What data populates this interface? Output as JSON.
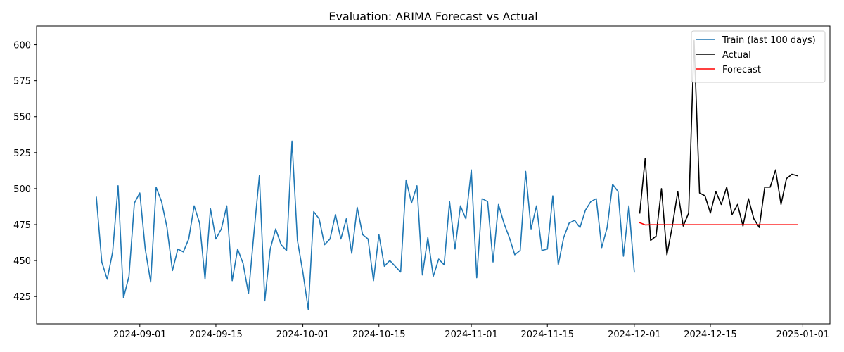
{
  "chart_data": {
    "type": "line",
    "title": "Evaluation: ARIMA Forecast vs Actual",
    "xlabel": "",
    "ylabel": "",
    "x_axis": "date",
    "xlim": [
      "2024-08-13",
      "2025-01-06"
    ],
    "ylim": [
      406,
      613
    ],
    "x_ticks": [
      "2024-09-01",
      "2024-09-15",
      "2024-10-01",
      "2024-10-15",
      "2024-11-01",
      "2024-11-15",
      "2024-12-01",
      "2024-12-15",
      "2025-01-01"
    ],
    "y_ticks": [
      425,
      450,
      475,
      500,
      525,
      550,
      575,
      600
    ],
    "grid": false,
    "legend_position": "top-right",
    "series": [
      {
        "name": "Train (last 100 days)",
        "color": "#1f77b4",
        "x_start": "2024-08-24",
        "values": [
          494,
          449,
          437,
          456,
          502,
          424,
          439,
          490,
          497,
          458,
          435,
          501,
          491,
          473,
          443,
          458,
          456,
          465,
          488,
          476,
          437,
          486,
          465,
          472,
          488,
          436,
          458,
          448,
          427,
          469,
          509,
          422,
          458,
          472,
          461,
          457,
          533,
          464,
          442,
          416,
          484,
          479,
          461,
          465,
          482,
          465,
          479,
          455,
          487,
          468,
          465,
          436,
          468,
          446,
          450,
          446,
          442,
          506,
          490,
          502,
          440,
          466,
          439,
          451,
          447,
          491,
          458,
          488,
          479,
          513,
          438,
          493,
          491,
          449,
          489,
          476,
          466,
          454,
          457,
          512,
          472,
          488,
          457,
          458,
          495,
          447,
          466,
          476,
          478,
          473,
          485,
          491,
          493,
          459,
          473,
          503,
          498,
          453,
          488,
          442
        ]
      },
      {
        "name": "Actual",
        "color": "#000000",
        "x_start": "2024-12-02",
        "values": [
          483,
          521,
          464,
          467,
          500,
          454,
          474,
          498,
          474,
          483,
          603,
          497,
          495,
          483,
          498,
          489,
          501,
          482,
          489,
          474,
          493,
          479,
          473,
          501,
          501,
          513,
          489,
          507,
          510,
          509
        ]
      },
      {
        "name": "Forecast",
        "color": "#ff0000",
        "x_start": "2024-12-02",
        "values": [
          476.3,
          474.8,
          474.9,
          474.9,
          474.9,
          474.9,
          474.9,
          474.9,
          474.9,
          474.9,
          474.9,
          474.9,
          474.9,
          474.9,
          474.9,
          474.9,
          474.9,
          474.9,
          474.9,
          474.9,
          474.9,
          474.9,
          474.9,
          474.9,
          474.9,
          474.9,
          474.9,
          474.9,
          474.9,
          474.9
        ]
      }
    ]
  }
}
